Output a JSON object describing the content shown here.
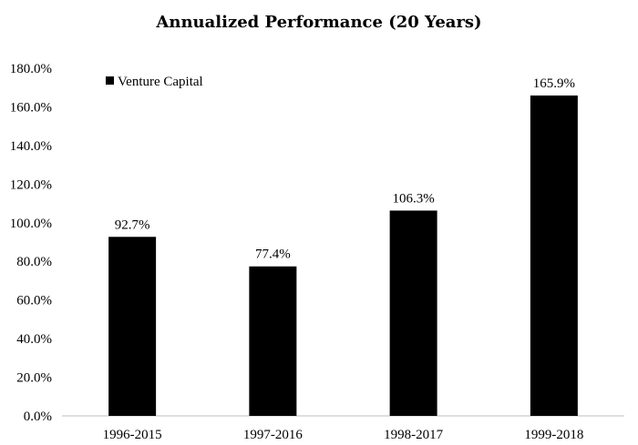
{
  "chart_data": {
    "type": "bar",
    "title": "Annualized Performance (20 Years)",
    "xlabel": "",
    "ylabel": "",
    "categories": [
      "1996-2015",
      "1997-2016",
      "1998-2017",
      "1999-2018"
    ],
    "series": [
      {
        "name": "Venture Capital",
        "values": [
          92.7,
          77.4,
          106.3,
          165.9
        ],
        "color": "#000000"
      }
    ],
    "data_labels": [
      "92.7%",
      "77.4%",
      "106.3%",
      "165.9%"
    ],
    "ylim": [
      0,
      180
    ],
    "yticks": [
      "0.0%",
      "20.0%",
      "40.0%",
      "60.0%",
      "80.0%",
      "100.0%",
      "120.0%",
      "140.0%",
      "160.0%",
      "180.0%"
    ],
    "grid": false,
    "legend_position": "top-left"
  }
}
